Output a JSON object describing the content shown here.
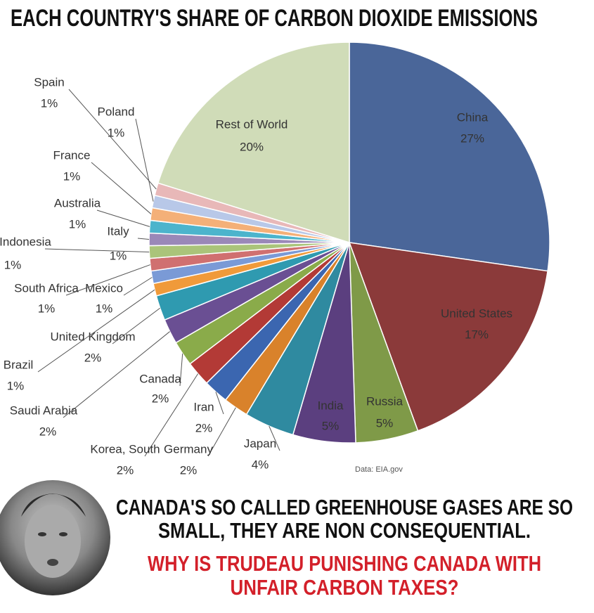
{
  "chart_data": {
    "type": "pie",
    "title": "EACH COUNTRY'S SHARE OF CARBON DIOXIDE EMISSIONS",
    "categories": [
      "China",
      "United States",
      "Russia",
      "India",
      "Japan",
      "Germany",
      "Iran",
      "Korea, South",
      "Canada",
      "Saudi Arabia",
      "United Kingdom",
      "Brazil",
      "Mexico",
      "South Africa",
      "Indonesia",
      "Italy",
      "Australia",
      "France",
      "Poland",
      "Spain",
      "Rest of World"
    ],
    "values": [
      27,
      17,
      5,
      5,
      4,
      2,
      2,
      2,
      2,
      2,
      2,
      1,
      1,
      1,
      1,
      1,
      1,
      1,
      1,
      1,
      20
    ],
    "value_labels": [
      "27%",
      "17%",
      "5%",
      "5%",
      "4%",
      "2%",
      "2%",
      "2%",
      "2%",
      "2%",
      "2%",
      "1%",
      "1%",
      "1%",
      "1%",
      "1%",
      "1%",
      "1%",
      "1%",
      "1%",
      "20%"
    ],
    "colors": [
      "#4a6699",
      "#8b3a3a",
      "#7f9a48",
      "#5b3f7f",
      "#2f8aa0",
      "#d9822b",
      "#3b66b0",
      "#b33a36",
      "#8aab4a",
      "#6a4f93",
      "#2f9ab0",
      "#f09a3a",
      "#7a9ad6",
      "#d07070",
      "#aac47a",
      "#9a88b8",
      "#4cb4cc",
      "#f4b078",
      "#b8c8e8",
      "#e8b8b8",
      "#d0dcb8"
    ],
    "source": "Data: EIA.gov"
  },
  "caption": {
    "black": [
      "CANADA'S SO CALLED GREENHOUSE GASES ARE SO",
      "SMALL, THEY ARE NON CONSEQUENTIAL."
    ],
    "red": [
      "WHY IS TRUDEAU PUNISHING CANADA WITH",
      "UNFAIR CARBON TAXES?"
    ]
  }
}
